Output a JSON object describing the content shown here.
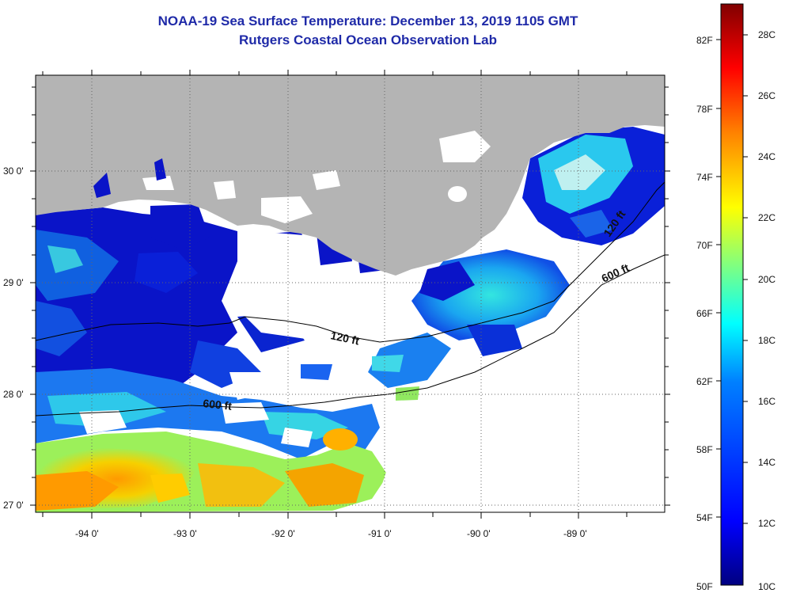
{
  "header": {
    "title": "NOAA-19 Sea Surface Temperature:  December 13, 2019 1105 GMT",
    "subtitle": "Rutgers Coastal Ocean Observation Lab"
  },
  "axes": {
    "lon_labels": [
      "-94 0'",
      "-93 0'",
      "-92 0'",
      "-91 0'",
      "-90 0'",
      "-89 0'"
    ],
    "lat_labels": [
      "30 0'",
      "29 0'",
      "28 0'",
      "27 0'"
    ],
    "grid": true
  },
  "contours": {
    "label_120_a": "120 ft",
    "label_120_b": "120 ft",
    "label_600_a": "600 ft",
    "label_600_b": "600 ft"
  },
  "colorbar": {
    "fahrenheit": [
      "82F",
      "78F",
      "74F",
      "70F",
      "66F",
      "62F",
      "58F",
      "54F",
      "50F"
    ],
    "celsius": [
      "28C",
      "26C",
      "24C",
      "22C",
      "20C",
      "18C",
      "16C",
      "14C",
      "12C",
      "10C"
    ],
    "colors": [
      "#000080",
      "#0000ff",
      "#0080ff",
      "#00ffff",
      "#80ff80",
      "#ffff00",
      "#ff8000",
      "#ff0000",
      "#800000"
    ]
  },
  "colors": {
    "land": "#b4b4b4",
    "cloud": "#ffffff",
    "title": "#1f2aa8"
  }
}
